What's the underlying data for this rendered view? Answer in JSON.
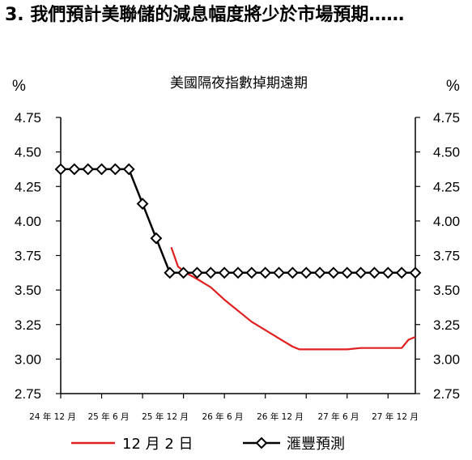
{
  "heading": "3. 我們預計美聯儲的減息幅度將少於市場預期……",
  "chart_data": {
    "type": "line",
    "title": "美國隔夜指數掉期遠期",
    "ylabel_left": "%",
    "ylabel_right": "%",
    "ylim": [
      2.75,
      4.75
    ],
    "yticks": [
      "4.75",
      "4.50",
      "4.25",
      "4.00",
      "3.75",
      "3.50",
      "3.25",
      "3.00",
      "2.75"
    ],
    "xticks": [
      "24 年 12 月",
      "25 年 6 月",
      "25 年 12 月",
      "26 年 6 月",
      "26 年 12 月",
      "27 年 6 月",
      "27 年 12 月"
    ],
    "legend_position": "bottom",
    "series": [
      {
        "name": "12 月 2 日",
        "color": "#e02020",
        "marker": "none",
        "points": [
          [
            8.1,
            3.81
          ],
          [
            8.6,
            3.67
          ],
          [
            9.1,
            3.63
          ],
          [
            10,
            3.58
          ],
          [
            11,
            3.52
          ],
          [
            12,
            3.43
          ],
          [
            13,
            3.35
          ],
          [
            14,
            3.27
          ],
          [
            15,
            3.21
          ],
          [
            16,
            3.15
          ],
          [
            17,
            3.09
          ],
          [
            17.5,
            3.07
          ],
          [
            18,
            3.07
          ],
          [
            19,
            3.07
          ],
          [
            20,
            3.07
          ],
          [
            21,
            3.07
          ],
          [
            22,
            3.08
          ],
          [
            23,
            3.08
          ],
          [
            24,
            3.08
          ],
          [
            25,
            3.08
          ],
          [
            25.5,
            3.14
          ],
          [
            26,
            3.16
          ]
        ]
      },
      {
        "name": "滙豐預測",
        "color": "#000000",
        "marker": "diamond",
        "points": [
          [
            0,
            4.375
          ],
          [
            1,
            4.375
          ],
          [
            2,
            4.375
          ],
          [
            3,
            4.375
          ],
          [
            4,
            4.375
          ],
          [
            5,
            4.375
          ],
          [
            6,
            4.125
          ],
          [
            7,
            3.875
          ],
          [
            8,
            3.625
          ],
          [
            9,
            3.625
          ],
          [
            10,
            3.625
          ],
          [
            11,
            3.625
          ],
          [
            12,
            3.625
          ],
          [
            13,
            3.625
          ],
          [
            14,
            3.625
          ],
          [
            15,
            3.625
          ],
          [
            16,
            3.625
          ],
          [
            17,
            3.625
          ],
          [
            18,
            3.625
          ],
          [
            19,
            3.625
          ],
          [
            20,
            3.625
          ],
          [
            21,
            3.625
          ],
          [
            22,
            3.625
          ],
          [
            23,
            3.625
          ],
          [
            24,
            3.625
          ],
          [
            25,
            3.625
          ],
          [
            26,
            3.625
          ]
        ]
      }
    ]
  }
}
